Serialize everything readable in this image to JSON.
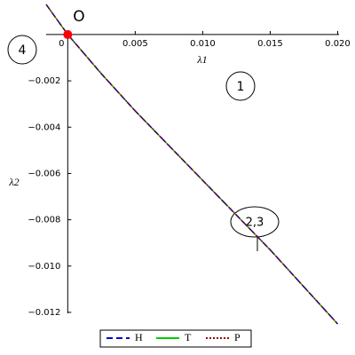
{
  "chart_data": {
    "type": "line",
    "x_label": "λ1",
    "y_label": "λ2",
    "x": [
      -0.0016,
      0,
      0.0025,
      0.005,
      0.0075,
      0.01,
      0.0125,
      0.015,
      0.0175,
      0.02
    ],
    "series": [
      {
        "name": "H",
        "color": "#0000cc",
        "dash": "dashed",
        "values": [
          0.0013,
          0,
          -0.0017,
          -0.0033,
          -0.0048,
          -0.0063,
          -0.0078,
          -0.0093,
          -0.0109,
          -0.0125
        ]
      },
      {
        "name": "T",
        "color": "#00cc00",
        "dash": "solid",
        "values": [
          0.0013,
          0,
          -0.0017,
          -0.0033,
          -0.0048,
          -0.0063,
          -0.0078,
          -0.0093,
          -0.0109,
          -0.0125
        ]
      },
      {
        "name": "P",
        "color": "#990000",
        "dash": "dotted",
        "values": [
          0.0013,
          0,
          -0.0017,
          -0.0033,
          -0.0048,
          -0.0063,
          -0.0078,
          -0.0093,
          -0.0109,
          -0.0125
        ]
      }
    ],
    "xlim": [
      -0.0016,
      0.0201
    ],
    "ylim": [
      -0.0125,
      0.0013
    ],
    "xticks": [
      0,
      0.005,
      {
        "value": 0.01,
        "label": "0.010"
      },
      0.015,
      {
        "value": 0.02,
        "label": "0.020"
      }
    ],
    "yticks": [
      {
        "value": -0.002,
        "label": "−0.002"
      },
      {
        "value": -0.004,
        "label": "−0.004"
      },
      {
        "value": -0.006,
        "label": "−0.006"
      },
      {
        "value": -0.008,
        "label": "−0.008"
      },
      {
        "value": -0.01,
        "label": "−0.010"
      },
      {
        "value": -0.012,
        "label": "−0.012"
      }
    ],
    "annotations": [
      "O",
      "4",
      "1",
      "2,3"
    ],
    "legend": "bottom"
  }
}
